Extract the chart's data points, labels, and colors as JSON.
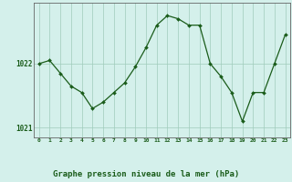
{
  "x": [
    0,
    1,
    2,
    3,
    4,
    5,
    6,
    7,
    8,
    9,
    10,
    11,
    12,
    13,
    14,
    15,
    16,
    17,
    18,
    19,
    20,
    21,
    22,
    23
  ],
  "y": [
    1022.0,
    1022.05,
    1021.85,
    1021.65,
    1021.55,
    1021.3,
    1021.4,
    1021.55,
    1021.7,
    1021.95,
    1022.25,
    1022.6,
    1022.75,
    1022.7,
    1022.6,
    1022.6,
    1022.0,
    1021.8,
    1021.55,
    1021.1,
    1021.55,
    1021.55,
    1022.0,
    1022.45
  ],
  "line_color": "#1a5c1a",
  "marker": "D",
  "marker_size": 2.0,
  "bg_color": "#d4f0eb",
  "grid_color": "#a0ccbb",
  "border_color": "#666666",
  "tick_label_color": "#1a5c1a",
  "ytick_labels": [
    "1021",
    "1022"
  ],
  "ytick_values": [
    1021.0,
    1022.0
  ],
  "ylim": [
    1020.85,
    1022.95
  ],
  "xlim": [
    -0.5,
    23.5
  ],
  "xtick_labels": [
    "0",
    "1",
    "2",
    "3",
    "4",
    "5",
    "6",
    "7",
    "8",
    "9",
    "10",
    "11",
    "12",
    "13",
    "14",
    "15",
    "16",
    "17",
    "18",
    "19",
    "20",
    "21",
    "22",
    "23"
  ],
  "bottom_label": "Graphe pression niveau de la mer (hPa)"
}
